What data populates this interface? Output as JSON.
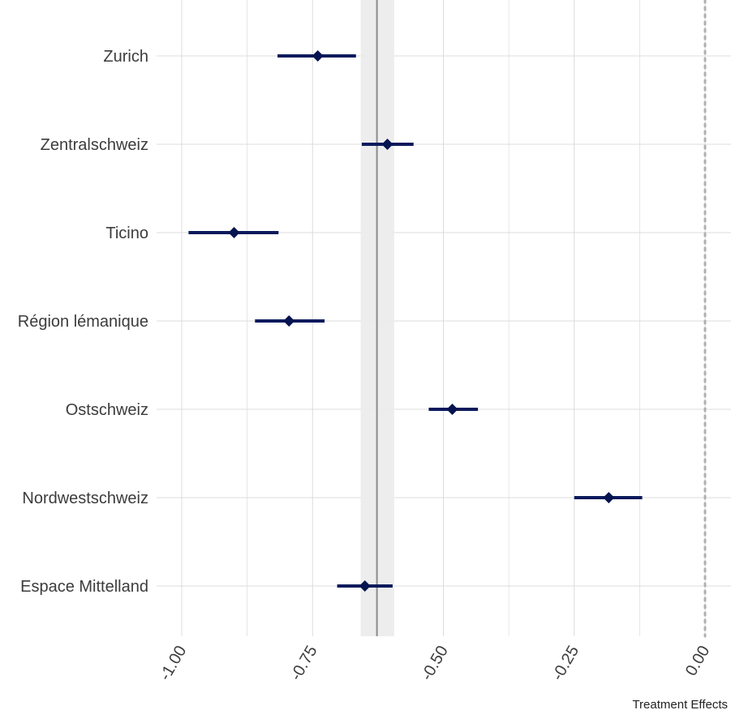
{
  "chart_data": {
    "type": "scatter",
    "subtype": "forest-plot",
    "title": "",
    "xlabel": "Treatment Effects",
    "ylabel": "",
    "xlim": [
      -1.02,
      0.02
    ],
    "x_ticks": [
      -1.0,
      -0.75,
      -0.5,
      -0.25,
      0.0
    ],
    "x_tick_labels": [
      "-1.00",
      "-0.75",
      "-0.50",
      "-0.25",
      "0.00"
    ],
    "grid": true,
    "legend": "none",
    "reference_line": {
      "x": 0.0,
      "style": "dotted",
      "color": "#b0b0b0"
    },
    "overall_effect": {
      "estimate": -0.627,
      "ci_low": -0.658,
      "ci_high": -0.594,
      "line_color": "#8c8c8c",
      "band_color": "#ebebeb"
    },
    "categories": [
      "Zurich",
      "Zentralschweiz",
      "Ticino",
      "Région lémanique",
      "Ostschweiz",
      "Nordwestschweiz",
      "Espace Mittelland"
    ],
    "estimates": [
      -0.74,
      -0.607,
      -0.9,
      -0.795,
      -0.483,
      -0.184,
      -0.65
    ],
    "ci_low": [
      -0.817,
      -0.656,
      -0.987,
      -0.86,
      -0.528,
      -0.25,
      -0.703
    ],
    "ci_high": [
      -0.667,
      -0.557,
      -0.815,
      -0.727,
      -0.434,
      -0.12,
      -0.597
    ],
    "colors": {
      "interval": "#0b1a5c",
      "point": "#051450",
      "grid": "#dcdcdc"
    }
  }
}
